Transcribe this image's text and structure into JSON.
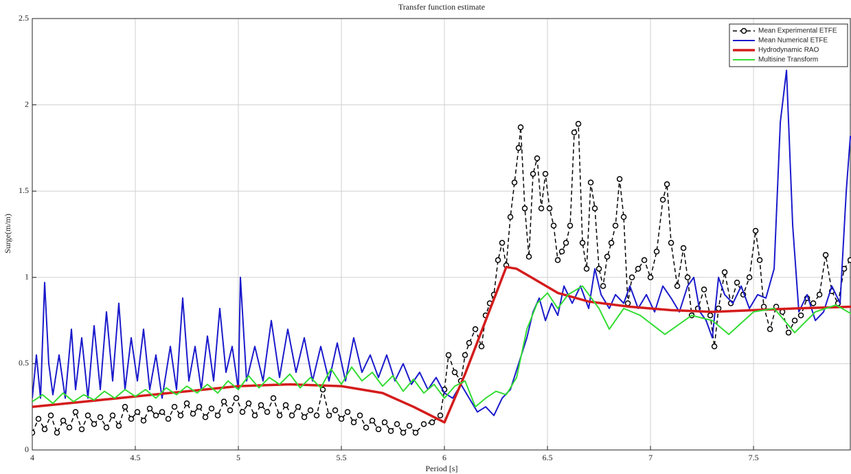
{
  "chart_data": {
    "type": "line",
    "title": "Transfer function estimate",
    "x_label": "Period [s]",
    "y_label": "Surge(m/m)",
    "xlim": [
      4,
      7.973
    ],
    "xticks": [
      4,
      4.5,
      5,
      5.5,
      6,
      6.5,
      7,
      7.5
    ],
    "ylim": [
      0,
      2.5
    ],
    "yticks": [
      0,
      0.5,
      1,
      1.5,
      2,
      2.5
    ],
    "grid": true,
    "legend": "top-right",
    "series": [
      {
        "name": "Mean Experimental ETFE",
        "color": "#000000",
        "width": 1.5,
        "style": "dashed",
        "marker": "circle",
        "x": [
          4.0,
          4.03,
          4.06,
          4.09,
          4.12,
          4.15,
          4.18,
          4.21,
          4.24,
          4.27,
          4.3,
          4.33,
          4.36,
          4.39,
          4.42,
          4.45,
          4.48,
          4.51,
          4.54,
          4.57,
          4.6,
          4.63,
          4.66,
          4.69,
          4.72,
          4.75,
          4.78,
          4.81,
          4.84,
          4.87,
          4.9,
          4.93,
          4.96,
          4.99,
          5.02,
          5.05,
          5.08,
          5.11,
          5.14,
          5.17,
          5.2,
          5.23,
          5.26,
          5.29,
          5.32,
          5.35,
          5.38,
          5.41,
          5.44,
          5.47,
          5.5,
          5.53,
          5.56,
          5.59,
          5.62,
          5.65,
          5.68,
          5.71,
          5.74,
          5.77,
          5.8,
          5.83,
          5.86,
          5.9,
          5.94,
          5.98,
          6.0,
          6.02,
          6.05,
          6.08,
          6.1,
          6.12,
          6.15,
          6.18,
          6.2,
          6.22,
          6.24,
          6.26,
          6.28,
          6.3,
          6.32,
          6.34,
          6.36,
          6.37,
          6.39,
          6.41,
          6.43,
          6.45,
          6.47,
          6.49,
          6.51,
          6.53,
          6.55,
          6.57,
          6.59,
          6.61,
          6.63,
          6.65,
          6.67,
          6.69,
          6.71,
          6.73,
          6.75,
          6.77,
          6.79,
          6.81,
          6.83,
          6.85,
          6.87,
          6.89,
          6.91,
          6.94,
          6.97,
          7.0,
          7.03,
          7.06,
          7.08,
          7.1,
          7.13,
          7.16,
          7.18,
          7.2,
          7.23,
          7.26,
          7.29,
          7.31,
          7.33,
          7.36,
          7.39,
          7.42,
          7.45,
          7.48,
          7.51,
          7.53,
          7.55,
          7.58,
          7.61,
          7.64,
          7.67,
          7.7,
          7.73,
          7.76,
          7.79,
          7.82,
          7.85,
          7.88,
          7.91,
          7.94,
          7.97
        ],
        "values": [
          0.1,
          0.18,
          0.12,
          0.2,
          0.1,
          0.17,
          0.13,
          0.22,
          0.12,
          0.2,
          0.15,
          0.19,
          0.13,
          0.2,
          0.14,
          0.25,
          0.18,
          0.22,
          0.17,
          0.24,
          0.2,
          0.22,
          0.18,
          0.25,
          0.2,
          0.27,
          0.21,
          0.25,
          0.19,
          0.24,
          0.2,
          0.28,
          0.23,
          0.3,
          0.22,
          0.27,
          0.2,
          0.26,
          0.22,
          0.3,
          0.2,
          0.26,
          0.2,
          0.25,
          0.19,
          0.23,
          0.2,
          0.35,
          0.2,
          0.23,
          0.18,
          0.22,
          0.16,
          0.2,
          0.13,
          0.17,
          0.12,
          0.16,
          0.11,
          0.15,
          0.1,
          0.14,
          0.1,
          0.15,
          0.16,
          0.2,
          0.35,
          0.55,
          0.45,
          0.4,
          0.55,
          0.62,
          0.7,
          0.6,
          0.78,
          0.85,
          0.9,
          1.1,
          1.2,
          1.07,
          1.35,
          1.55,
          1.75,
          1.87,
          1.4,
          1.12,
          1.6,
          1.69,
          1.4,
          1.6,
          1.4,
          1.3,
          1.1,
          1.15,
          1.2,
          1.3,
          1.84,
          1.89,
          1.2,
          1.05,
          1.55,
          1.4,
          1.05,
          0.95,
          1.12,
          1.2,
          1.3,
          1.57,
          1.35,
          0.85,
          1.0,
          1.05,
          1.1,
          1.0,
          1.15,
          1.45,
          1.54,
          1.2,
          0.95,
          1.17,
          1.0,
          0.78,
          0.82,
          0.93,
          0.78,
          0.6,
          0.82,
          1.03,
          0.85,
          0.97,
          0.9,
          1.0,
          1.27,
          1.1,
          0.83,
          0.7,
          0.83,
          0.8,
          0.68,
          0.75,
          0.78,
          0.88,
          0.85,
          0.9,
          1.13,
          0.92,
          0.85,
          1.05,
          1.1
        ]
      },
      {
        "name": "Mean Numerical ETFE",
        "color": "#1a1acc",
        "width": 2,
        "x": [
          4.0,
          4.02,
          4.04,
          4.06,
          4.08,
          4.1,
          4.13,
          4.16,
          4.19,
          4.21,
          4.24,
          4.27,
          4.3,
          4.33,
          4.36,
          4.39,
          4.42,
          4.45,
          4.48,
          4.51,
          4.54,
          4.57,
          4.6,
          4.63,
          4.67,
          4.7,
          4.73,
          4.76,
          4.79,
          4.82,
          4.85,
          4.88,
          4.91,
          4.94,
          4.97,
          5.0,
          5.01,
          5.04,
          5.08,
          5.12,
          5.16,
          5.2,
          5.24,
          5.28,
          5.32,
          5.36,
          5.4,
          5.44,
          5.48,
          5.52,
          5.56,
          5.6,
          5.64,
          5.68,
          5.72,
          5.76,
          5.8,
          5.84,
          5.88,
          5.92,
          5.96,
          6.0,
          6.04,
          6.08,
          6.12,
          6.16,
          6.2,
          6.24,
          6.28,
          6.32,
          6.36,
          6.4,
          6.43,
          6.46,
          6.49,
          6.52,
          6.55,
          6.58,
          6.62,
          6.66,
          6.7,
          6.73,
          6.76,
          6.8,
          6.83,
          6.87,
          6.9,
          6.94,
          6.98,
          7.02,
          7.06,
          7.1,
          7.14,
          7.18,
          7.21,
          7.24,
          7.27,
          7.3,
          7.33,
          7.36,
          7.4,
          7.44,
          7.48,
          7.52,
          7.56,
          7.6,
          7.63,
          7.66,
          7.69,
          7.72,
          7.76,
          7.8,
          7.84,
          7.88,
          7.92,
          7.95,
          7.97
        ],
        "values": [
          0.3,
          0.55,
          0.3,
          0.97,
          0.5,
          0.32,
          0.55,
          0.3,
          0.7,
          0.35,
          0.65,
          0.3,
          0.72,
          0.35,
          0.8,
          0.4,
          0.85,
          0.35,
          0.65,
          0.4,
          0.7,
          0.35,
          0.55,
          0.3,
          0.6,
          0.35,
          0.88,
          0.4,
          0.6,
          0.35,
          0.66,
          0.4,
          0.82,
          0.45,
          0.6,
          0.35,
          1.0,
          0.4,
          0.6,
          0.4,
          0.75,
          0.42,
          0.7,
          0.45,
          0.65,
          0.4,
          0.6,
          0.4,
          0.62,
          0.4,
          0.65,
          0.45,
          0.55,
          0.42,
          0.55,
          0.4,
          0.5,
          0.38,
          0.45,
          0.35,
          0.42,
          0.33,
          0.3,
          0.38,
          0.3,
          0.22,
          0.25,
          0.2,
          0.3,
          0.35,
          0.5,
          0.65,
          0.8,
          0.88,
          0.75,
          0.85,
          0.78,
          0.95,
          0.85,
          0.95,
          0.82,
          1.05,
          0.9,
          0.82,
          0.9,
          0.85,
          0.95,
          0.82,
          0.9,
          0.8,
          0.95,
          0.88,
          0.8,
          0.95,
          1.0,
          0.8,
          0.75,
          0.65,
          1.0,
          0.9,
          0.85,
          0.95,
          0.82,
          0.9,
          0.88,
          1.05,
          1.9,
          2.2,
          1.3,
          0.8,
          0.9,
          0.75,
          0.8,
          0.95,
          0.85,
          1.5,
          1.82
        ]
      },
      {
        "name": "Hydrodynamic RAO",
        "color": "#d41c1c",
        "width": 3.5,
        "x": [
          4,
          4.25,
          4.5,
          4.75,
          5,
          5.25,
          5.5,
          5.7,
          5.85,
          6.0,
          6.1,
          6.2,
          6.3,
          6.35,
          6.45,
          6.55,
          6.7,
          6.9,
          7.1,
          7.3,
          7.5,
          7.7,
          7.973
        ],
        "values": [
          0.25,
          0.28,
          0.31,
          0.34,
          0.37,
          0.38,
          0.37,
          0.33,
          0.25,
          0.16,
          0.44,
          0.75,
          1.06,
          1.05,
          0.98,
          0.91,
          0.86,
          0.83,
          0.81,
          0.8,
          0.81,
          0.82,
          0.83
        ]
      },
      {
        "name": "Multisine Transform",
        "color": "#33dd33",
        "width": 2,
        "x": [
          4.0,
          4.05,
          4.1,
          4.15,
          4.2,
          4.25,
          4.3,
          4.35,
          4.4,
          4.45,
          4.5,
          4.55,
          4.6,
          4.65,
          4.7,
          4.75,
          4.8,
          4.85,
          4.9,
          4.95,
          5.0,
          5.05,
          5.1,
          5.15,
          5.2,
          5.25,
          5.3,
          5.35,
          5.4,
          5.45,
          5.5,
          5.55,
          5.6,
          5.65,
          5.7,
          5.75,
          5.8,
          5.85,
          5.9,
          5.95,
          6.0,
          6.05,
          6.1,
          6.15,
          6.2,
          6.25,
          6.3,
          6.35,
          6.4,
          6.45,
          6.5,
          6.55,
          6.6,
          6.67,
          6.75,
          6.8,
          6.87,
          6.95,
          7.07,
          7.2,
          7.3,
          7.38,
          7.5,
          7.6,
          7.7,
          7.8,
          7.9,
          7.973
        ],
        "values": [
          0.28,
          0.32,
          0.27,
          0.33,
          0.28,
          0.32,
          0.29,
          0.34,
          0.3,
          0.35,
          0.31,
          0.35,
          0.3,
          0.36,
          0.32,
          0.37,
          0.33,
          0.38,
          0.33,
          0.4,
          0.35,
          0.43,
          0.36,
          0.42,
          0.38,
          0.44,
          0.36,
          0.42,
          0.36,
          0.47,
          0.38,
          0.48,
          0.4,
          0.45,
          0.37,
          0.43,
          0.34,
          0.41,
          0.33,
          0.38,
          0.3,
          0.37,
          0.4,
          0.25,
          0.3,
          0.34,
          0.32,
          0.42,
          0.7,
          0.85,
          0.91,
          0.82,
          0.9,
          0.95,
          0.82,
          0.7,
          0.82,
          0.78,
          0.67,
          0.78,
          0.75,
          0.67,
          0.8,
          0.82,
          0.68,
          0.8,
          0.84,
          0.79
        ]
      }
    ]
  }
}
